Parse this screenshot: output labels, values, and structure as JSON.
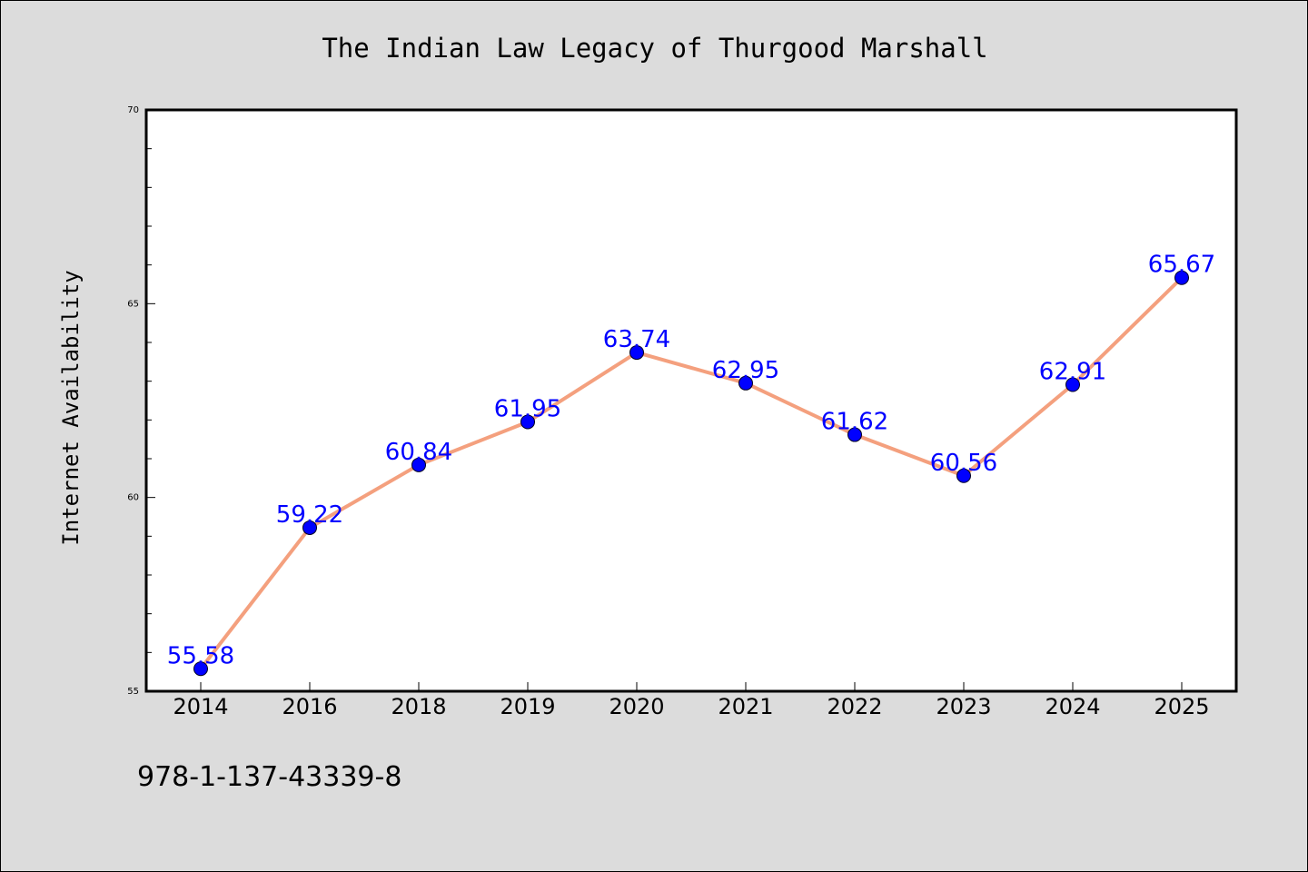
{
  "chart_data": {
    "type": "line",
    "title": "The Indian Law Legacy of Thurgood Marshall",
    "xlabel": "",
    "ylabel": "Internet Availability",
    "categories": [
      "2014",
      "2016",
      "2018",
      "2019",
      "2020",
      "2021",
      "2022",
      "2023",
      "2024",
      "2025"
    ],
    "series": [
      {
        "values": [
          55.58,
          59.22,
          60.84,
          61.95,
          63.74,
          62.95,
          61.62,
          60.56,
          62.91,
          65.67
        ],
        "line_color": "#f4a07e",
        "marker_color": "#0000ff",
        "label_color": "#0000ff"
      }
    ],
    "data_labels": [
      "55.58",
      "59.22",
      "60.84",
      "61.95",
      "63.74",
      "62.95",
      "61.62",
      "60.56",
      "62.91",
      "65.67"
    ],
    "ylim": [
      55,
      70
    ],
    "yticks": [
      "55",
      "60",
      "65",
      "70"
    ],
    "grid": false,
    "legend": "none",
    "background": "#dcdcdc",
    "plot_background": "#ffffff",
    "footnote": "978-1-137-43339-8"
  }
}
